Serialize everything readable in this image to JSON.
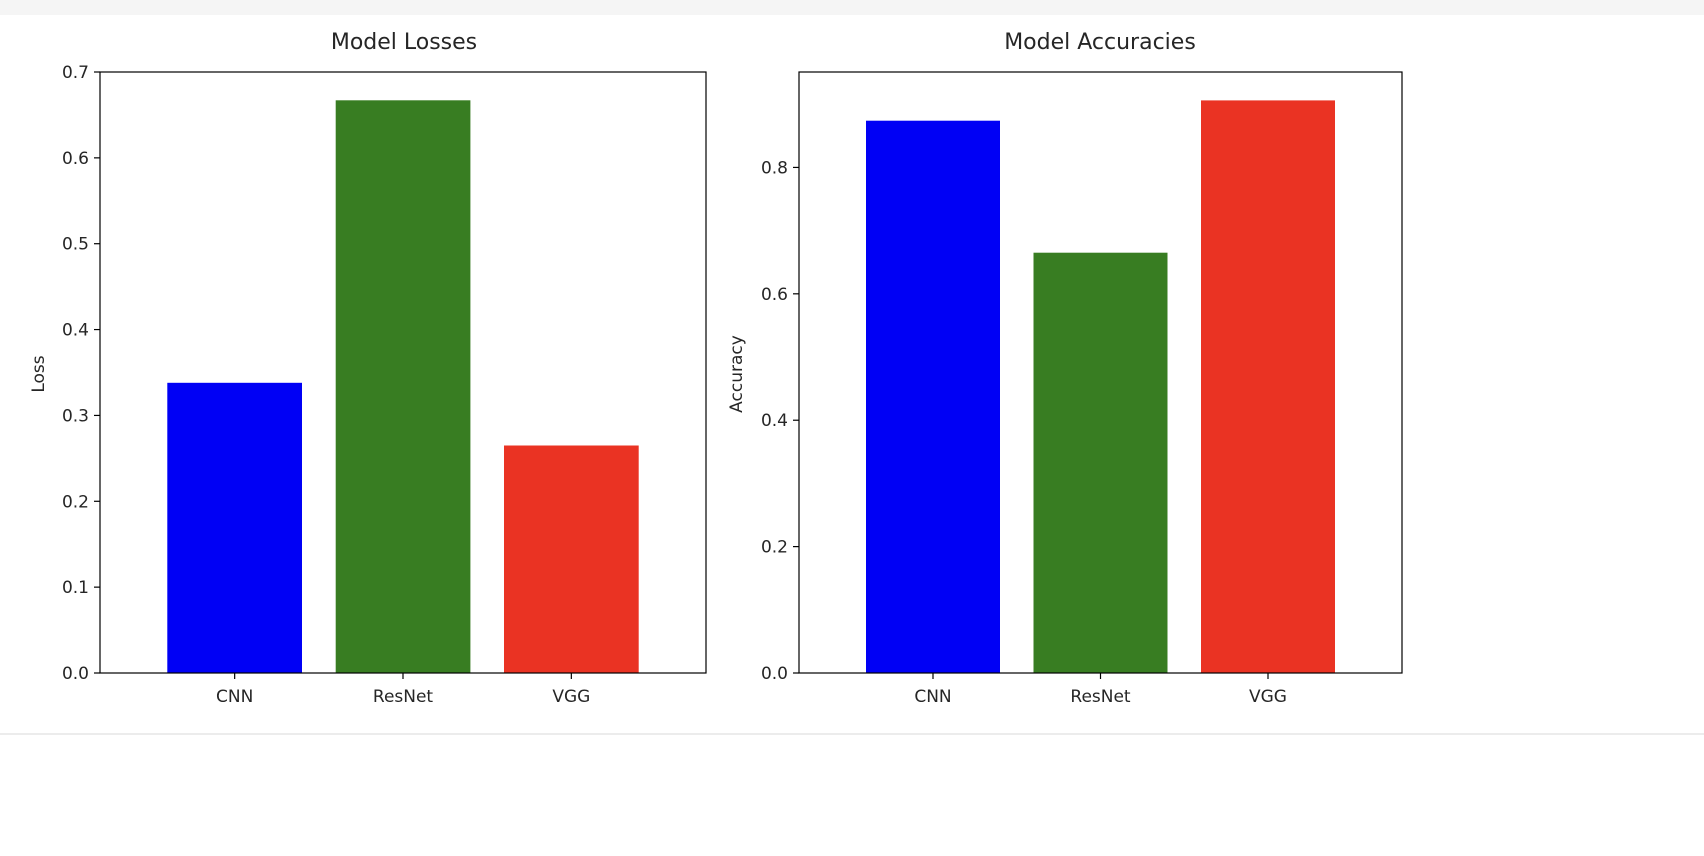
{
  "chart_data": [
    {
      "type": "bar",
      "title": "Model Losses",
      "xlabel": "",
      "ylabel": "Loss",
      "categories": [
        "CNN",
        "ResNet",
        "VGG"
      ],
      "values": [
        0.338,
        0.667,
        0.265
      ],
      "colors": [
        "#0000f5",
        "#387d22",
        "#ea3323"
      ],
      "ylim": [
        0,
        0.7
      ],
      "yticks": [
        0.0,
        0.1,
        0.2,
        0.3,
        0.4,
        0.5,
        0.6,
        0.7
      ],
      "ytick_labels": [
        "0.0",
        "0.1",
        "0.2",
        "0.3",
        "0.4",
        "0.5",
        "0.6",
        "0.7"
      ],
      "grid": false,
      "legend": "none"
    },
    {
      "type": "bar",
      "title": "Model Accuracies",
      "xlabel": "",
      "ylabel": "Accuracy",
      "categories": [
        "CNN",
        "ResNet",
        "VGG"
      ],
      "values": [
        0.874,
        0.665,
        0.906
      ],
      "colors": [
        "#0000f5",
        "#387d22",
        "#ea3323"
      ],
      "ylim": [
        0,
        0.951
      ],
      "yticks": [
        0.0,
        0.2,
        0.4,
        0.6,
        0.8
      ],
      "ytick_labels": [
        "0.0",
        "0.2",
        "0.4",
        "0.6",
        "0.8"
      ],
      "grid": false,
      "legend": "none"
    }
  ]
}
